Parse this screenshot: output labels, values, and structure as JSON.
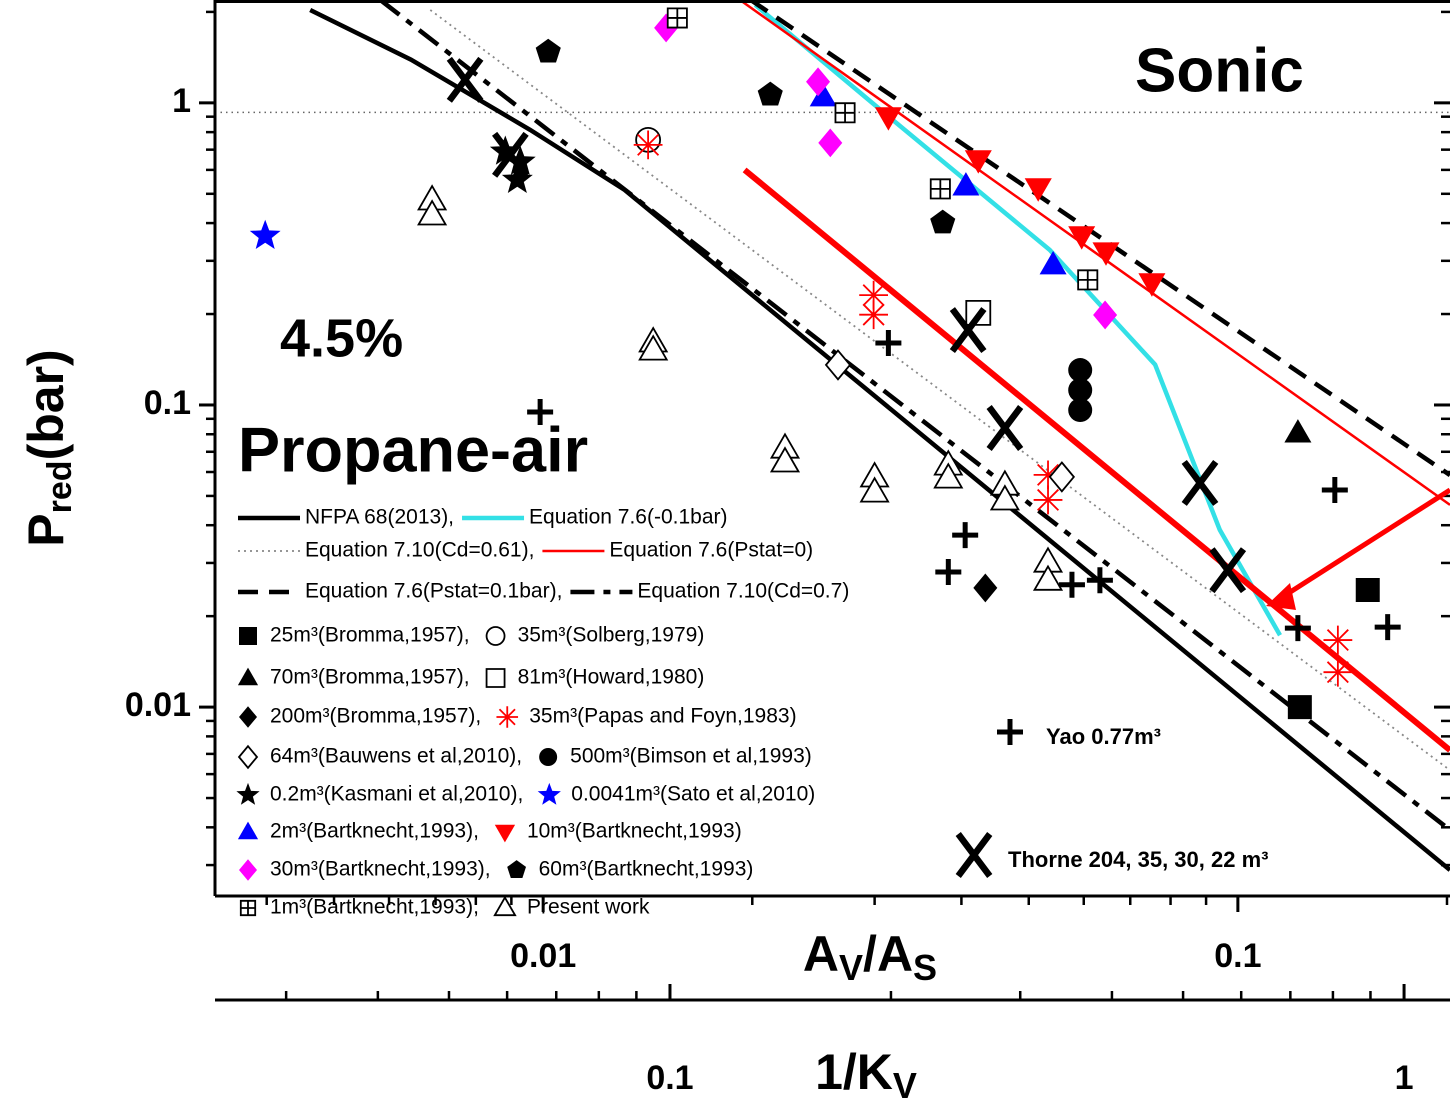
{
  "chart_data": {
    "type": "scatter",
    "xscale": "log",
    "yscale": "log",
    "xlim": [
      0.00337,
      0.202
    ],
    "ylim": [
      0.00237,
      2.19
    ],
    "x2lim": [
      0.024,
      1.155
    ],
    "xticks": [
      0.01,
      0.1
    ],
    "yticks": [
      0.01,
      0.1,
      1
    ],
    "x2ticks": [
      0.1,
      1
    ],
    "xminorticks": [
      0.004,
      0.005,
      0.006,
      0.007,
      0.008,
      0.009,
      0.02,
      0.03,
      0.04,
      0.05,
      0.06,
      0.07,
      0.08,
      0.09,
      0.2
    ],
    "yminorticks": [
      0.003,
      0.004,
      0.005,
      0.006,
      0.007,
      0.008,
      0.009,
      0.02,
      0.03,
      0.04,
      0.05,
      0.06,
      0.07,
      0.08,
      0.09,
      0.2,
      0.3,
      0.4,
      0.5,
      0.6,
      0.7,
      0.8,
      0.9,
      2
    ],
    "x2minorticks": [
      0.03,
      0.04,
      0.05,
      0.06,
      0.07,
      0.08,
      0.09,
      0.2,
      0.3,
      0.4,
      0.5,
      0.6,
      0.7,
      0.8,
      0.9
    ],
    "ylabel": [
      "P",
      "red",
      "(bar)"
    ],
    "xlabel": [
      "A",
      "V",
      "/A",
      "S"
    ],
    "x2label": [
      "1/K",
      "V"
    ],
    "annotations": {
      "sonic": "Sonic",
      "concentration": "4.5%",
      "mixture": "Propane-air"
    },
    "reference_line": 0.93,
    "lines": [
      {
        "name": "NFPA 68(2013),",
        "color": "#000000",
        "dash": "solid",
        "weight": "thick",
        "x": [
          0.00462,
          0.00645,
          0.00958,
          0.0131,
          0.202
        ],
        "y": [
          2.03,
          1.39,
          0.814,
          0.515,
          0.00289
        ]
      },
      {
        "name": "Equation 7.6(-0.1bar)",
        "color": "#33e0e6",
        "dash": "solid",
        "weight": "thick",
        "x": [
          0.0202,
          0.0306,
          0.0536,
          0.076,
          0.0942,
          0.115
        ],
        "y": [
          2.11,
          0.948,
          0.326,
          0.136,
          0.0386,
          0.0173
        ]
      },
      {
        "name": "Equation 7.10(Cd=0.61),",
        "color": "#888888",
        "dash": "dotted",
        "weight": "thin",
        "x": [
          0.00688,
          0.202
        ],
        "y": [
          2.03,
          0.00618
        ]
      },
      {
        "name": "Equation 7.6(Pstat=0)",
        "color": "#ff0000",
        "dash": "solid",
        "weight": "thin",
        "x": [
          0.0192,
          0.202
        ],
        "y": [
          2.19,
          0.0467
        ]
      },
      {
        "name": "Equation 7.6(Pstat=0.1bar),",
        "color": "#000000",
        "dash": "dashed",
        "weight": "thick",
        "x": [
          0.0199,
          0.202
        ],
        "y": [
          2.19,
          0.0586
        ]
      },
      {
        "name": "Equation 7.10(Cd=0.7)",
        "color": "#000000",
        "dash": "dashdot",
        "weight": "thick",
        "x": [
          0.00583,
          0.202
        ],
        "y": [
          2.19,
          0.00392
        ]
      }
    ],
    "fit_lines": [
      {
        "color": "#ff0000",
        "x": [
          0.0195,
          0.202
        ],
        "y": [
          0.6,
          0.0072
        ]
      }
    ],
    "series": [
      {
        "name": "25m³(Bromma,1957),",
        "marker": "square",
        "color": "#000000",
        "x": [
          0.1228,
          0.1538
        ],
        "y": [
          0.01,
          0.0244
        ]
      },
      {
        "name": "35m³(Solberg,1979)",
        "marker": "circle-open",
        "color": "#000000",
        "x": [
          0.01416
        ],
        "y": [
          0.754
        ]
      },
      {
        "name": "70m³(Bromma,1957),",
        "marker": "triangle",
        "color": "#000000",
        "x": [
          0.122
        ],
        "y": [
          0.0808
        ]
      },
      {
        "name": "81m³(Howard,1980)",
        "marker": "square-open",
        "color": "#000000",
        "x": [
          0.0423
        ],
        "y": [
          0.2018
        ]
      },
      {
        "name": "200m³(Bromma,1957),",
        "marker": "diamond",
        "color": "#000000",
        "x": [
          0.0433
        ],
        "y": [
          0.0248
        ]
      },
      {
        "name": "35m³(Papas and Foyn,1983)",
        "marker": "asterisk",
        "color": "#ff0000",
        "x": [
          0.01416,
          0.0299,
          0.0299,
          0.0533,
          0.0533,
          0.1393,
          0.1393
        ],
        "y": [
          0.726,
          0.231,
          0.199,
          0.0587,
          0.0485,
          0.01667,
          0.01305
        ]
      },
      {
        "name": "64m³(Bauwens et al,2010),",
        "marker": "diamond-open",
        "color": "#000000",
        "x": [
          0.02657,
          0.0558
        ],
        "y": [
          0.1357,
          0.0578
        ]
      },
      {
        "name": "500m³(Bimson et al,1993)",
        "marker": "circle",
        "color": "#000000",
        "x": [
          0.0593,
          0.0593,
          0.0593
        ],
        "y": [
          0.1305,
          0.112,
          0.0962
        ]
      },
      {
        "name": "0.2m³(Kasmani et al,2010),",
        "marker": "star",
        "color": "#000000",
        "x": [
          0.00882,
          0.00927,
          0.00918
        ],
        "y": [
          0.689,
          0.638,
          0.556
        ]
      },
      {
        "name": "0.0041m³(Sato et al,2010)",
        "marker": "star",
        "color": "#0000ff",
        "x": [
          0.00398
        ],
        "y": [
          0.3627
        ]
      },
      {
        "name": "2m³(Bartknecht,1993),",
        "marker": "triangle",
        "color": "#0000ff",
        "x": [
          0.0253,
          0.0406,
          0.0542
        ],
        "y": [
          1.047,
          0.531,
          0.291
        ]
      },
      {
        "name": "10m³(Bartknecht,1993)",
        "marker": "triangle-down",
        "color": "#ff0000",
        "x": [
          0.0314,
          0.0423,
          0.0516,
          0.0596,
          0.0646,
          0.0752
        ],
        "y": [
          0.899,
          0.648,
          0.523,
          0.363,
          0.321,
          0.2535
        ]
      },
      {
        "name": "30m³(Bartknecht,1993),",
        "marker": "diamond",
        "color": "#ff00ff",
        "x": [
          0.01503,
          0.02487,
          0.0259,
          0.0644
        ],
        "y": [
          1.77,
          1.174,
          0.737,
          0.1986
        ]
      },
      {
        "name": "60m³(Bartknecht,1993)",
        "marker": "pentagon",
        "color": "#000000",
        "x": [
          0.01017,
          0.02123,
          0.0376
        ],
        "y": [
          1.475,
          1.063,
          0.401
        ]
      },
      {
        "name": "1m³(Bartknecht,1993),",
        "marker": "boxplus",
        "color": "#000000",
        "x": [
          0.0156,
          0.0272,
          0.0373,
          0.0608
        ],
        "y": [
          1.91,
          0.927,
          0.519,
          0.2594
        ]
      },
      {
        "name": "Present work",
        "marker": "triangle-open",
        "color": "#000000",
        "x": [
          0.00692,
          0.00692,
          0.0144,
          0.0144,
          0.02229,
          0.02229,
          0.03,
          0.03,
          0.0383,
          0.0383,
          0.0462,
          0.0462,
          0.0533,
          0.0533
        ],
        "y": [
          0.4774,
          0.4257,
          0.1617,
          0.1521,
          0.072,
          0.0648,
          0.0578,
          0.0515,
          0.0633,
          0.0573,
          0.0543,
          0.0485,
          0.0302,
          0.0263
        ]
      },
      {
        "name": "Yao 0.77m³",
        "marker": "plus",
        "color": "#000000",
        "legend": false,
        "x": [
          0.0099,
          0.0314,
          0.0405,
          0.0383,
          0.0577,
          0.0633,
          0.122,
          0.1379,
          0.1643
        ],
        "y": [
          0.0948,
          0.1604,
          0.0371,
          0.028,
          0.0254,
          0.0263,
          0.01826,
          0.0523,
          0.0184
        ]
      },
      {
        "name": "Thorne 204, 35, 30, 22 m³",
        "marker": "x",
        "color": "#000000",
        "legend": false,
        "x": [
          0.00772,
          0.00897,
          0.0409,
          0.0462,
          0.0882,
          0.0967
        ],
        "y": [
          1.192,
          0.673,
          0.177,
          0.0839,
          0.0552,
          0.0284
        ]
      }
    ]
  }
}
